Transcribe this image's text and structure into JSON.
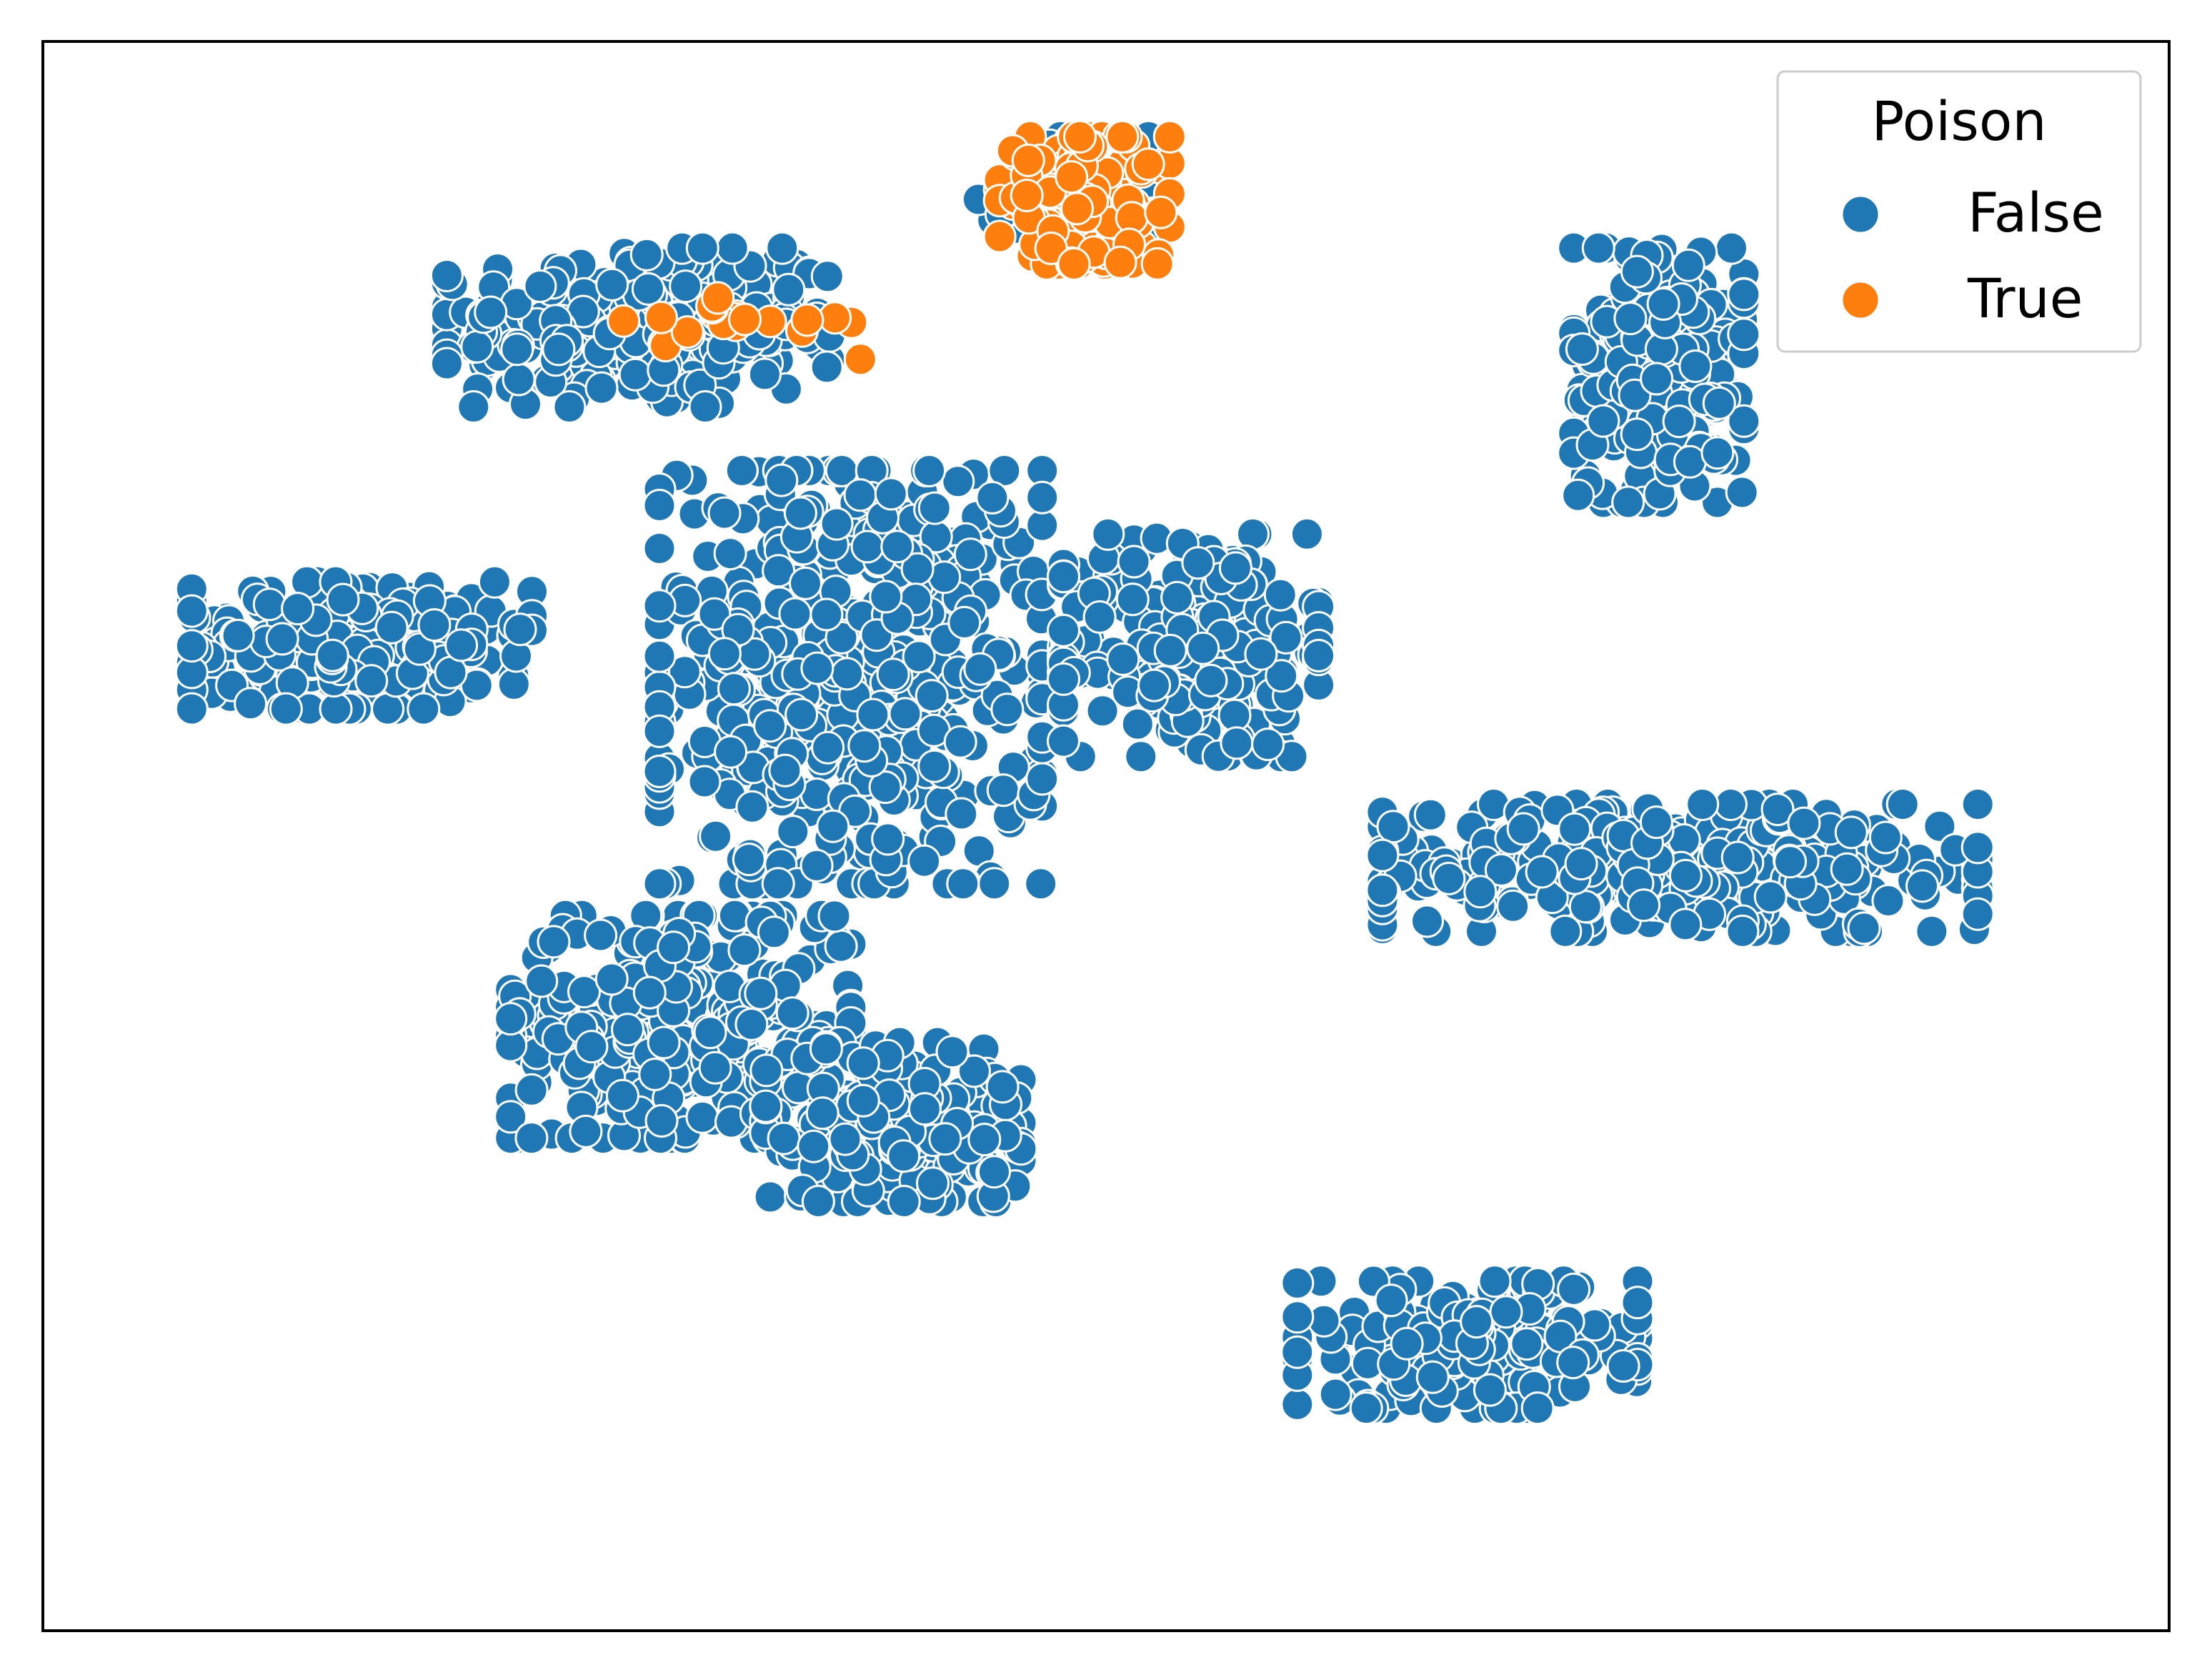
{
  "chart_data": {
    "type": "scatter",
    "title": "",
    "xlabel": "",
    "ylabel": "",
    "xticks": [],
    "yticks": [],
    "xlim": [
      0,
      100
    ],
    "ylim": [
      0,
      100
    ],
    "grid": false,
    "legend": {
      "title": "Poison",
      "position": "top-right",
      "entries": [
        {
          "label": "False",
          "color": "#1f77b4"
        },
        {
          "label": "True",
          "color": "#ff7f0e"
        }
      ]
    },
    "series": [
      {
        "name": "False",
        "color": "#1f77b4",
        "clusters": [
          {
            "region": "upper-left cluster",
            "center": [
              28,
              82
            ],
            "spread": [
              9,
              5
            ],
            "count": 260
          },
          {
            "region": "central body",
            "center": [
              38,
              60
            ],
            "spread": [
              9,
              13
            ],
            "count": 520
          },
          {
            "region": "central right arm",
            "center": [
              54,
              62
            ],
            "spread": [
              6,
              7
            ],
            "count": 260
          },
          {
            "region": "left arm",
            "center": [
              15,
              62
            ],
            "spread": [
              8,
              4
            ],
            "count": 240
          },
          {
            "region": "lower-left body",
            "center": [
              30,
              38
            ],
            "spread": [
              8,
              7
            ],
            "count": 360
          },
          {
            "region": "lower-middle body",
            "center": [
              40,
              32
            ],
            "spread": [
              6,
              5
            ],
            "count": 200
          },
          {
            "region": "upper-right cluster",
            "center": [
              76,
              79
            ],
            "spread": [
              4,
              8
            ],
            "count": 260
          },
          {
            "region": "right elongated cluster",
            "center": [
              77,
              48
            ],
            "spread": [
              14,
              4
            ],
            "count": 360
          },
          {
            "region": "bottom-right cluster",
            "center": [
              67,
              18
            ],
            "spread": [
              8,
              4
            ],
            "count": 220
          },
          {
            "region": "top cluster background",
            "center": [
              48,
              90
            ],
            "spread": [
              4,
              4
            ],
            "count": 60
          }
        ]
      },
      {
        "name": "True",
        "color": "#ff7f0e",
        "clusters": [
          {
            "region": "top cluster",
            "center": [
              49,
              90
            ],
            "spread": [
              4,
              4
            ],
            "count": 140
          },
          {
            "region": "upper-left fringe",
            "center": [
              33,
              82
            ],
            "spread": [
              6,
              2
            ],
            "count": 20
          }
        ]
      }
    ]
  }
}
